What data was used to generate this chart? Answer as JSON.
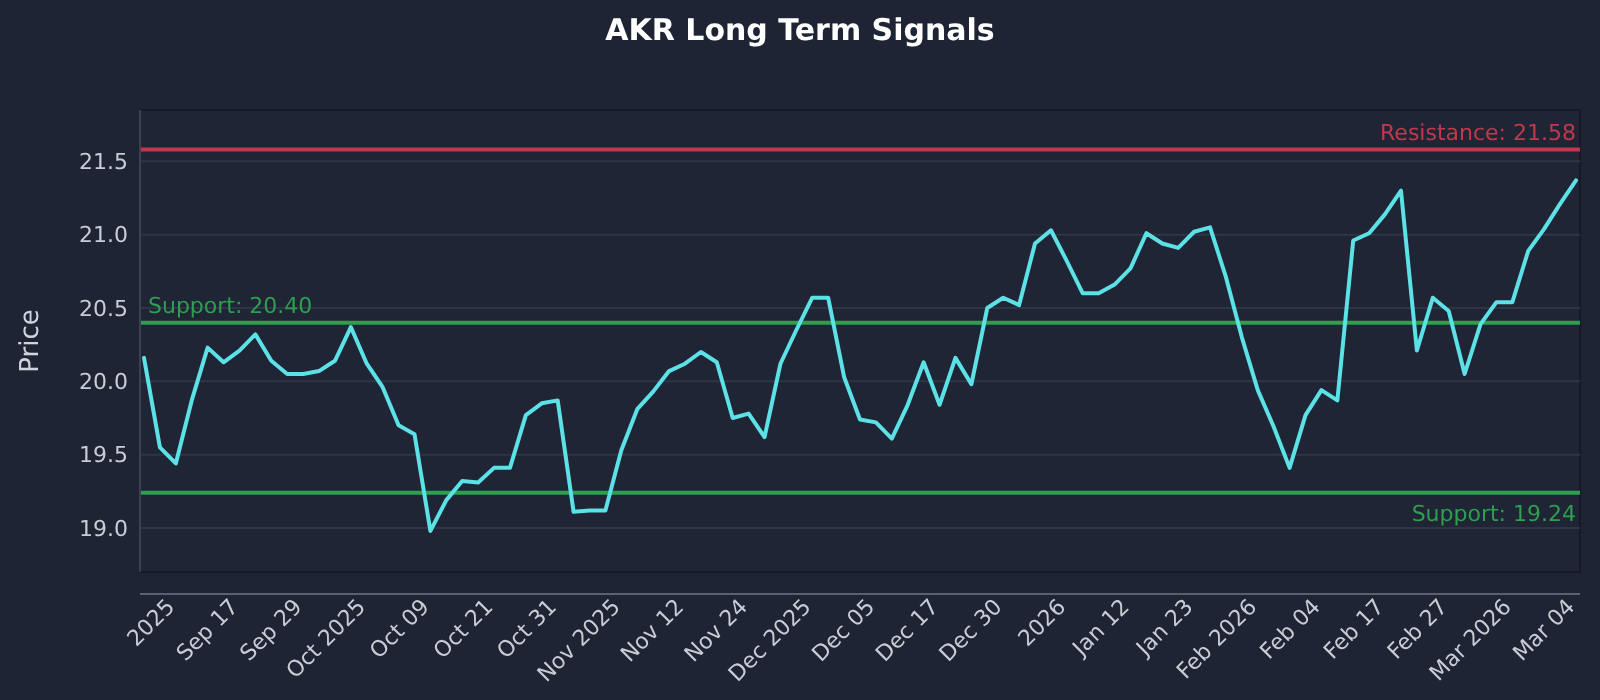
{
  "chart_data": {
    "type": "line",
    "title": "AKR Long Term Signals",
    "ylabel": "Price",
    "categories": [
      null,
      null,
      "2025",
      null,
      null,
      null,
      "Sep 17",
      null,
      null,
      null,
      "Sep 29",
      null,
      null,
      null,
      "Oct 2025",
      null,
      null,
      null,
      "Oct 09",
      null,
      null,
      null,
      "Oct 21",
      null,
      null,
      null,
      "Oct 31",
      null,
      null,
      null,
      "Nov 2025",
      null,
      null,
      null,
      "Nov 12",
      null,
      null,
      null,
      "Nov 24",
      null,
      null,
      null,
      "Dec 2025",
      null,
      null,
      null,
      "Dec 05",
      null,
      null,
      null,
      "Dec 17",
      null,
      null,
      null,
      "Dec 30",
      null,
      null,
      null,
      "2026",
      null,
      null,
      null,
      "Jan 12",
      null,
      null,
      null,
      "Jan 23",
      null,
      null,
      null,
      "Feb 2026",
      null,
      null,
      null,
      "Feb 04",
      null,
      null,
      null,
      "Feb 17",
      null,
      null,
      null,
      "Feb 27",
      null,
      null,
      null,
      "Mar 2026",
      null,
      null,
      null,
      "Mar 04"
    ],
    "series": [
      {
        "color": "#5ce1e6",
        "values": [
          20.16,
          19.55,
          19.44,
          19.87,
          20.23,
          20.13,
          20.21,
          20.32,
          20.14,
          20.05,
          20.05,
          20.07,
          20.14,
          20.37,
          20.12,
          19.96,
          19.7,
          19.64,
          18.98,
          19.19,
          19.32,
          19.31,
          19.41,
          19.41,
          19.77,
          19.85,
          19.87,
          19.11,
          19.12,
          19.12,
          19.53,
          19.81,
          19.93,
          20.07,
          20.12,
          20.2,
          20.13,
          19.75,
          19.78,
          19.62,
          20.12,
          20.35,
          20.57,
          20.57,
          20.03,
          19.74,
          19.72,
          19.61,
          19.84,
          20.13,
          19.84,
          20.16,
          19.98,
          20.5,
          20.57,
          20.52,
          20.94,
          21.03,
          20.82,
          20.6,
          20.6,
          20.66,
          20.77,
          21.01,
          20.94,
          20.91,
          21.02,
          21.05,
          20.71,
          20.3,
          19.94,
          19.69,
          19.41,
          19.77,
          19.94,
          19.87,
          20.96,
          21.01,
          21.14,
          21.3,
          20.21,
          20.57,
          20.48,
          20.05,
          20.39,
          20.54,
          20.54,
          20.89,
          21.04,
          21.21,
          21.37
        ]
      }
    ],
    "ylim": [
      18.7,
      21.85
    ],
    "yticks": [
      {
        "value": 19,
        "label": "19.0"
      },
      {
        "value": 19.5,
        "label": "19.5"
      },
      {
        "value": 20,
        "label": "20.0"
      },
      {
        "value": 20.5,
        "label": "20.5"
      },
      {
        "value": 21,
        "label": "21.0"
      },
      {
        "value": 21.5,
        "label": "21.5"
      }
    ],
    "grid": "y",
    "marker": "none",
    "line_style": "solid",
    "ref_lines": [
      {
        "axis": "y",
        "value": 21.58,
        "label": "Resistance: 21.58",
        "color": "#c0394b"
      },
      {
        "axis": "y",
        "value": 20.4,
        "label": "Support: 20.40",
        "color": "#2e9e4f"
      },
      {
        "axis": "y",
        "value": 19.24,
        "label": "Support: 19.24",
        "color": "#2e9e4f"
      }
    ]
  }
}
